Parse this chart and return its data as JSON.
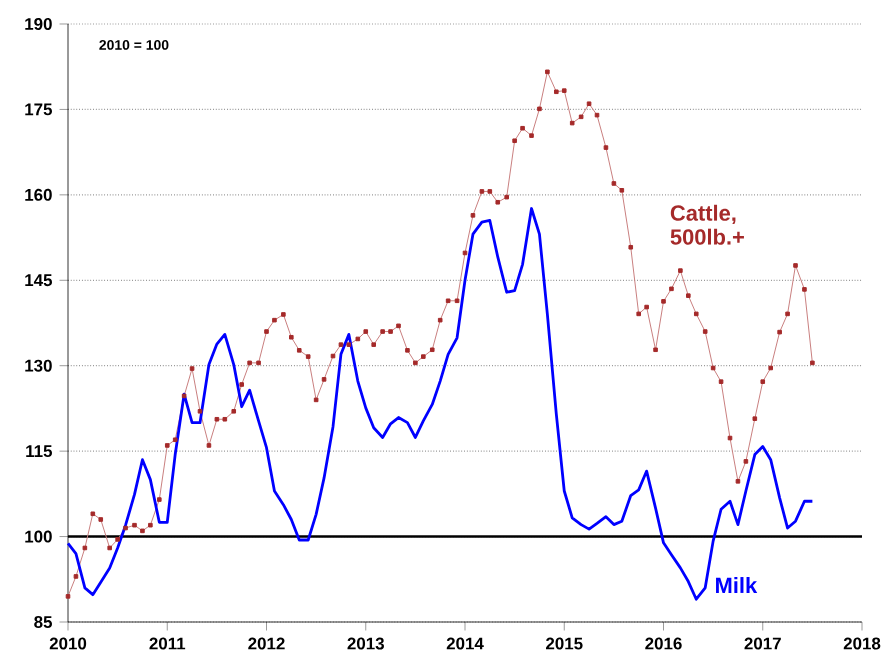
{
  "chart_data": {
    "type": "line",
    "x": [
      "2010-01",
      "2010-02",
      "2010-03",
      "2010-04",
      "2010-05",
      "2010-06",
      "2010-07",
      "2010-08",
      "2010-09",
      "2010-10",
      "2010-11",
      "2010-12",
      "2011-01",
      "2011-02",
      "2011-03",
      "2011-04",
      "2011-05",
      "2011-06",
      "2011-07",
      "2011-08",
      "2011-09",
      "2011-10",
      "2011-11",
      "2011-12",
      "2012-01",
      "2012-02",
      "2012-03",
      "2012-04",
      "2012-05",
      "2012-06",
      "2012-07",
      "2012-08",
      "2012-09",
      "2012-10",
      "2012-11",
      "2012-12",
      "2013-01",
      "2013-02",
      "2013-03",
      "2013-04",
      "2013-05",
      "2013-06",
      "2013-07",
      "2013-08",
      "2013-09",
      "2013-10",
      "2013-11",
      "2013-12",
      "2014-01",
      "2014-02",
      "2014-03",
      "2014-04",
      "2014-05",
      "2014-06",
      "2014-07",
      "2014-08",
      "2014-09",
      "2014-10",
      "2014-11",
      "2014-12",
      "2015-01",
      "2015-02",
      "2015-03",
      "2015-04",
      "2015-05",
      "2015-06",
      "2015-07",
      "2015-08",
      "2015-09",
      "2015-10",
      "2015-11",
      "2015-12",
      "2016-01",
      "2016-02",
      "2016-03",
      "2016-04",
      "2016-05",
      "2016-06",
      "2016-07",
      "2016-08",
      "2016-09",
      "2016-10",
      "2016-11",
      "2016-12",
      "2017-01",
      "2017-02",
      "2017-03",
      "2017-04",
      "2017-05",
      "2017-06",
      "2017-07"
    ],
    "series": [
      {
        "name": "Cattle, 500lb.+",
        "color": "#a52a2a",
        "marker": "square",
        "values": [
          89.5,
          93,
          98,
          104,
          103,
          98,
          99.5,
          101.5,
          102,
          101,
          102,
          106.5,
          116,
          117,
          124.7,
          129.5,
          122,
          116,
          120.6,
          120.6,
          122,
          126.7,
          130.5,
          130.5,
          136,
          138,
          139,
          135,
          132.7,
          131.6,
          124,
          127.6,
          131.7,
          133.7,
          133.7,
          134.7,
          136,
          133.7,
          136,
          136,
          137,
          132.7,
          130.5,
          131.6,
          132.8,
          138,
          141.4,
          141.4,
          149.8,
          156.4,
          160.6,
          160.6,
          158.7,
          159.6,
          169.5,
          171.7,
          170.4,
          175.1,
          181.6,
          178.1,
          178.3,
          172.6,
          173.7,
          176,
          174,
          168.3,
          162,
          160.8,
          150.8,
          139.1,
          140.3,
          132.8,
          141.3,
          143.5,
          146.7,
          142.3,
          139.1,
          136,
          129.6,
          127.2,
          117.3,
          109.7,
          113.2,
          120.7,
          127.2,
          129.6,
          135.9,
          139.1,
          147.6,
          143.4,
          130.5
        ]
      },
      {
        "name": "Milk",
        "color": "#0000ff",
        "marker": "none",
        "values": [
          98.8,
          97,
          91,
          89.8,
          92,
          94.5,
          98,
          102,
          107.4,
          113.5,
          110,
          102.5,
          102.5,
          114.4,
          125,
          120,
          120,
          130.2,
          133.8,
          135.5,
          130.2,
          122.8,
          125.7,
          120.3,
          115.6,
          108,
          105.6,
          103,
          99.4,
          99.4,
          103.9,
          110.3,
          119.3,
          132,
          135.5,
          127.3,
          122.6,
          119.1,
          117.4,
          119.8,
          120.9,
          120,
          117.4,
          120.3,
          123.2,
          127.3,
          132,
          134.9,
          145,
          153.1,
          155.2,
          155.5,
          149.1,
          142.9,
          143.2,
          147.8,
          157.6,
          153.1,
          139,
          121.5,
          108,
          103.3,
          102.1,
          101.3,
          102.3,
          103.5,
          102.1,
          102.7,
          107.2,
          108.2,
          111.5,
          105,
          98.9,
          96.8,
          94.5,
          92.1,
          89,
          91,
          99.2,
          104.8,
          106.2,
          102.1,
          108,
          114.4,
          115.8,
          113.5,
          106.8,
          101.5,
          102.7,
          106.2,
          106.2
        ]
      }
    ],
    "xlim": [
      "2010",
      "2018"
    ],
    "xticks": [
      "2010",
      "2011",
      "2012",
      "2013",
      "2014",
      "2015",
      "2016",
      "2017",
      "2018"
    ],
    "ylim": [
      85,
      190
    ],
    "yticks": [
      85,
      100,
      115,
      130,
      145,
      160,
      175,
      190
    ],
    "grid": "y",
    "line_style": "solid",
    "ref_lines": [
      {
        "axis": "y",
        "value": 100,
        "color": "#000000"
      }
    ],
    "annotations": [
      "2010 = 100"
    ]
  }
}
